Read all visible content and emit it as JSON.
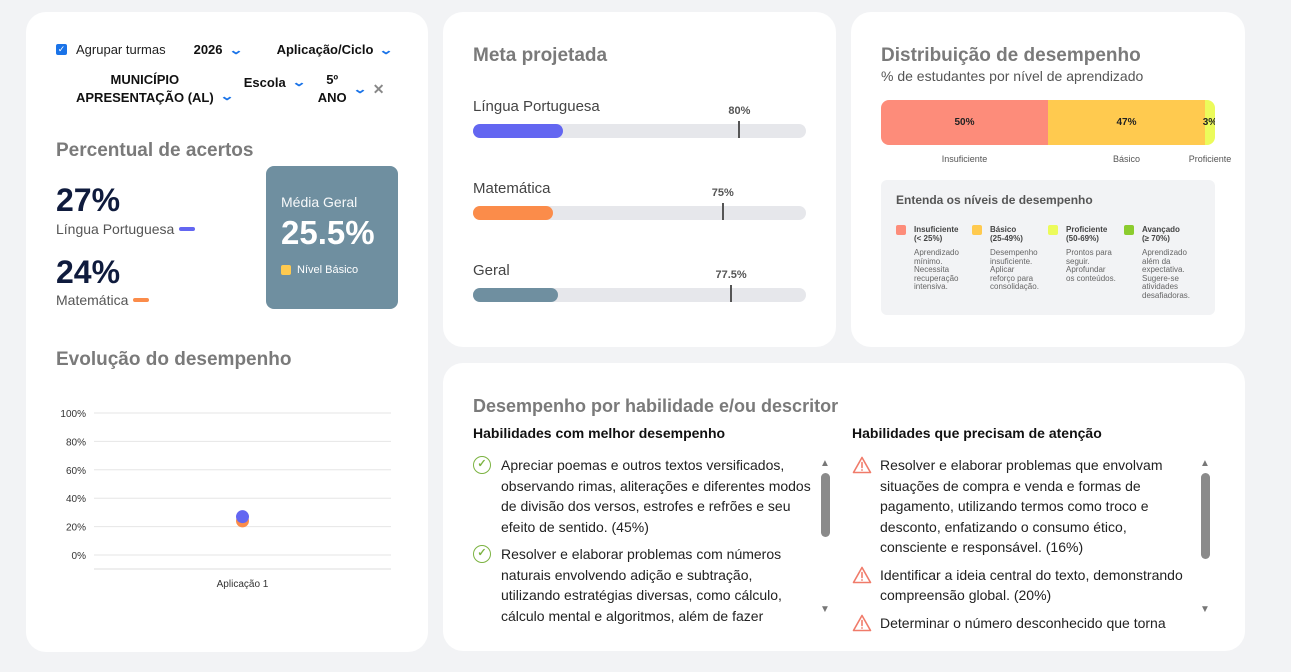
{
  "filters": {
    "group_label": "Agrupar turmas",
    "year": "2026",
    "application": "Aplicação/Ciclo",
    "municipality_line1": "MUNICÍPIO",
    "municipality_line2": "APRESENTAÇÃO (AL)",
    "school": "Escola",
    "grade_line1": "5º",
    "grade_line2": "ANO"
  },
  "acertos": {
    "title": "Percentual de acertos",
    "lp_value": "27%",
    "lp_label": "Língua Portuguesa",
    "mat_value": "24%",
    "mat_label": "Matemática",
    "media_label": "Média Geral",
    "media_value": "25.5%",
    "media_badge": "Nível Básico"
  },
  "evolucao": {
    "title": "Evolução do desempenho"
  },
  "chart_data": {
    "type": "scatter",
    "title": "Evolução do desempenho",
    "categories": [
      "Aplicação 1"
    ],
    "y_ticks": [
      "100%",
      "80%",
      "60%",
      "40%",
      "20%",
      "0%"
    ],
    "ylim": [
      0,
      100
    ],
    "series": [
      {
        "name": "Língua Portuguesa",
        "color": "#6366f1",
        "values": [
          27
        ]
      },
      {
        "name": "Matemática",
        "color": "#fb8c4a",
        "values": [
          24
        ]
      }
    ],
    "legend": "none",
    "grid": true
  },
  "meta": {
    "title": "Meta projetada",
    "items": [
      {
        "label": "Língua Portuguesa",
        "current": 27,
        "target": 80,
        "target_label": "80%",
        "color": "#6366f1"
      },
      {
        "label": "Matemática",
        "current": 24,
        "target": 75,
        "target_label": "75%",
        "color": "#fb8c4a"
      },
      {
        "label": "Geral",
        "current": 25.5,
        "target": 77.5,
        "target_label": "77.5%",
        "color": "#6f8fa0"
      }
    ]
  },
  "distribuicao": {
    "title": "Distribuição de desempenho",
    "subtitle": "% de estudantes por nível de aprendizado",
    "segments": [
      {
        "label": "Insuficiente",
        "value": 50,
        "value_label": "50%",
        "color": "#fd8c7a"
      },
      {
        "label": "Básico",
        "value": 47,
        "value_label": "47%",
        "color": "#ffca4f"
      },
      {
        "label": "Proficiente",
        "value": 3,
        "value_label": "3%",
        "color": "#ecfb5b"
      }
    ],
    "legend_title": "Entenda os níveis de desempenho",
    "levels": [
      {
        "name": "Insuficiente",
        "range": "(< 25%)",
        "color": "#fd8c7a",
        "desc": "Aprendizado mínimo. Necessita recuperação intensiva."
      },
      {
        "name": "Básico",
        "range": "(25-49%)",
        "color": "#ffca4f",
        "desc": "Desempenho insuficiente. Aplicar reforço para consolidação."
      },
      {
        "name": "Proficiente",
        "range": "(50-69%)",
        "color": "#ecfb5b",
        "desc": "Prontos para seguir. Aprofundar os conteúdos."
      },
      {
        "name": "Avançado",
        "range": "(≥ 70%)",
        "color": "#8ccc2e",
        "desc": "Aprendizado além da expectativa. Sugere-se atividades desafiadoras."
      }
    ]
  },
  "habilidades": {
    "title": "Desempenho por habilidade e/ou descritor",
    "best_title": "Habilidades com melhor desempenho",
    "best": [
      "Apreciar poemas e outros textos versificados, observando rimas, aliterações e diferentes modos de divisão dos versos, estrofes e refrões e seu efeito de sentido. (45%)",
      "Resolver e elaborar problemas com números naturais envolvendo adição e subtração, utilizando estratégias diversas, como cálculo, cálculo mental e algoritmos, além de fazer"
    ],
    "attention_title": "Habilidades que precisam de atenção",
    "attention": [
      "Resolver e elaborar problemas que envolvam situações de compra e venda e formas de pagamento, utilizando termos como troco e desconto, enfatizando o consumo ético, consciente e responsável. (16%)",
      "Identificar a ideia central do texto, demonstrando compreensão global. (20%)",
      "Determinar o número desconhecido que torna"
    ]
  }
}
